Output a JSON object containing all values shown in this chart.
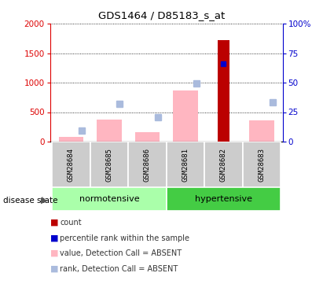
{
  "title": "GDS1464 / D85183_s_at",
  "samples": [
    "GSM28684",
    "GSM28685",
    "GSM28686",
    "GSM28681",
    "GSM28682",
    "GSM28683"
  ],
  "bar_color_dark_red": "#BB0000",
  "bar_color_pink": "#FFB6C1",
  "bar_color_blue": "#0000CD",
  "bar_color_light_blue": "#AABBDD",
  "count_values": [
    null,
    null,
    null,
    null,
    1720,
    null
  ],
  "percentile_values": [
    null,
    null,
    null,
    null,
    1320,
    null
  ],
  "value_absent": [
    80,
    380,
    160,
    870,
    null,
    360
  ],
  "rank_absent": [
    190,
    640,
    410,
    990,
    null,
    665
  ],
  "ylim_left": [
    0,
    2000
  ],
  "ylim_right": [
    0,
    100
  ],
  "yticks_left": [
    0,
    500,
    1000,
    1500,
    2000
  ],
  "ytick_labels_right": [
    "0",
    "25",
    "50",
    "75",
    "100%"
  ],
  "left_axis_color": "#DD0000",
  "right_axis_color": "#0000CC",
  "background_color": "#FFFFFF",
  "norm_color": "#AAFFAA",
  "hyper_color": "#44CC44",
  "legend_labels": [
    "count",
    "percentile rank within the sample",
    "value, Detection Call = ABSENT",
    "rank, Detection Call = ABSENT"
  ],
  "legend_colors": [
    "#BB0000",
    "#0000CD",
    "#FFB6C1",
    "#AABBDD"
  ]
}
